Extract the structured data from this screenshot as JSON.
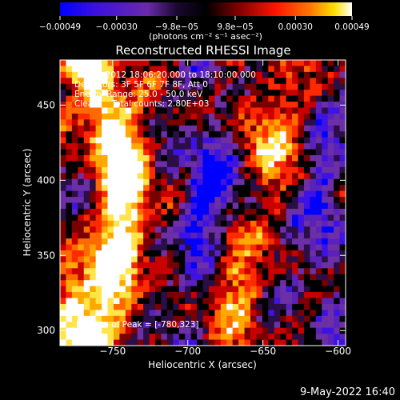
{
  "chart_data": {
    "type": "heatmap",
    "title": "Reconstructed RHESSI Image",
    "xlabel": "Heliocentric X (arcsec)",
    "ylabel": "Heliocentric Y (arcsec)",
    "xlim": [
      -785,
      -595
    ],
    "ylim": [
      290,
      480
    ],
    "x_ticks": [
      -750,
      -700,
      -650,
      -600
    ],
    "x_tick_labels": [
      "−750",
      "−700",
      "−650",
      "−600"
    ],
    "y_ticks": [
      300,
      350,
      400,
      450
    ],
    "y_tick_labels": [
      "300",
      "350",
      "400",
      "450"
    ],
    "colorbar": {
      "range": [
        -0.00049,
        0.00049
      ],
      "ticks": [
        -0.00049,
        -0.0003,
        -9.8e-05,
        9.8e-05,
        0.0003,
        0.00049
      ],
      "tick_labels": [
        "−0.00049",
        "−0.00030",
        "−9.8e−05",
        "9.8e−05",
        "0.00030",
        "0.00049"
      ],
      "units_label": "(photons cm⁻² s⁻¹ asec⁻²)",
      "colors": [
        "#0000ff",
        "#4a16c8",
        "#6a2aa8",
        "#000000",
        "#8a0000",
        "#ff1500",
        "#ff7a00",
        "#ffe000",
        "#ffffff"
      ]
    },
    "annotations": {
      "time_range": "1-Apr-2012 18:06:20.000 to 18:10:00.000",
      "detectors": "Detectors: 3F 5F 6F 7F 8F, Att 0",
      "energy_range": "Energy Range: 25.0 - 50.0 keV",
      "method_counts": "Clean     Total counts: 2.80E+03",
      "peak_position": "Position of Peak = [-780,323]"
    },
    "peak": {
      "x": -780,
      "y": 323
    },
    "grid": false
  },
  "footer": {
    "date_stamp": "9-May-2022 16:40"
  }
}
